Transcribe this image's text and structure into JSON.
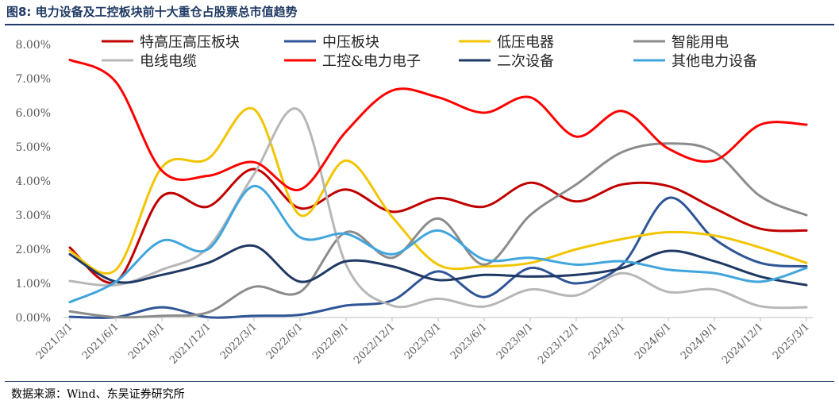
{
  "figure": {
    "title": "图8:  电力设备及工控板块前十大重仓占股票总市值趋势",
    "source": "数据来源：Wind、东吴证券研究所"
  },
  "chart_data": {
    "type": "line",
    "x": [
      "2021/3/1",
      "2021/6/1",
      "2021/9/1",
      "2021/12/1",
      "2022/3/1",
      "2022/6/1",
      "2022/9/1",
      "2022/12/1",
      "2023/3/1",
      "2023/6/1",
      "2023/9/1",
      "2023/12/1",
      "2024/3/1",
      "2024/6/1",
      "2024/9/1",
      "2024/12/1",
      "2025/3/1"
    ],
    "y_ticks": [
      "0.00%",
      "1.00%",
      "2.00%",
      "3.00%",
      "4.00%",
      "5.00%",
      "6.00%",
      "7.00%",
      "8.00%"
    ],
    "ylim": [
      0,
      8
    ],
    "grid": false,
    "legend": "top",
    "series": [
      {
        "name": "特高压高压板块",
        "color": "#c00000",
        "values": [
          2.05,
          1.05,
          3.55,
          3.25,
          4.35,
          3.2,
          3.75,
          3.1,
          3.5,
          3.25,
          3.95,
          3.4,
          3.9,
          3.85,
          3.2,
          2.6,
          2.55
        ]
      },
      {
        "name": "中压板块",
        "color": "#2f5597",
        "values": [
          0.02,
          0.01,
          0.3,
          0.01,
          0.05,
          0.08,
          0.35,
          0.5,
          1.35,
          0.6,
          1.45,
          1.0,
          1.55,
          3.5,
          2.3,
          1.6,
          1.5
        ]
      },
      {
        "name": "低压电器",
        "color": "#f2c500",
        "values": [
          1.95,
          1.4,
          4.4,
          4.65,
          6.1,
          3.0,
          4.6,
          2.95,
          1.55,
          1.5,
          1.6,
          2.0,
          2.3,
          2.5,
          2.4,
          2.05,
          1.6
        ]
      },
      {
        "name": "智能用电",
        "color": "#8c8c8c",
        "values": [
          0.18,
          0.01,
          0.05,
          0.15,
          0.9,
          0.75,
          2.5,
          1.75,
          2.9,
          1.55,
          3.0,
          3.9,
          4.85,
          5.1,
          4.85,
          3.55,
          3.0
        ]
      },
      {
        "name": "电线电缆",
        "color": "#b7b7b7",
        "values": [
          1.07,
          0.95,
          1.4,
          2.05,
          4.2,
          6.05,
          1.55,
          0.35,
          0.55,
          0.32,
          0.82,
          0.65,
          1.3,
          0.75,
          0.82,
          0.33,
          0.3
        ]
      },
      {
        "name": "工控&电力电子",
        "color": "#ff0000",
        "values": [
          7.55,
          6.9,
          4.3,
          4.15,
          4.55,
          3.75,
          5.45,
          6.65,
          6.45,
          6.0,
          6.45,
          5.3,
          6.05,
          4.95,
          4.6,
          5.65,
          5.65
        ]
      },
      {
        "name": "二次设备",
        "color": "#1f3864",
        "values": [
          1.85,
          1.05,
          1.25,
          1.6,
          2.1,
          1.05,
          1.65,
          1.5,
          1.1,
          1.25,
          1.2,
          1.25,
          1.45,
          1.95,
          1.65,
          1.2,
          0.95
        ]
      },
      {
        "name": "其他电力设备",
        "color": "#41a5dd",
        "values": [
          0.45,
          1.05,
          2.25,
          2.0,
          3.85,
          2.35,
          2.45,
          1.85,
          2.55,
          1.7,
          1.75,
          1.55,
          1.65,
          1.4,
          1.3,
          1.05,
          1.45
        ]
      }
    ]
  }
}
